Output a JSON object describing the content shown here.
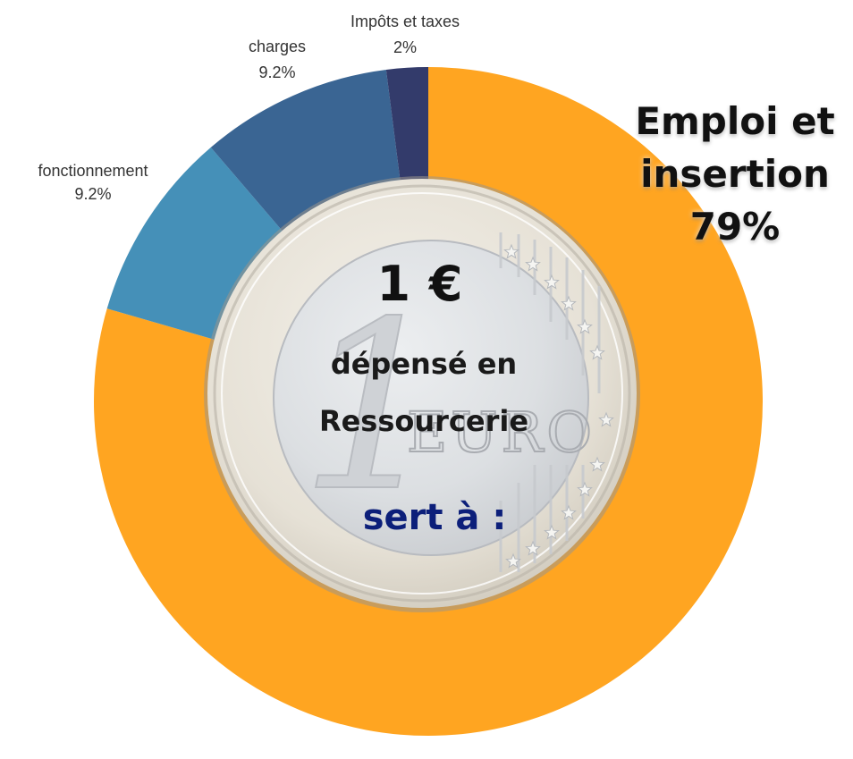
{
  "chart_data": {
    "type": "pie",
    "subtype": "donut",
    "title": "1 € dépensé en Ressourcerie sert à :",
    "categories": [
      "Emploi et insertion",
      "fonctionnement",
      "charges",
      "Impôts et taxes"
    ],
    "values": [
      79,
      9.2,
      9.2,
      2
    ],
    "unit": "%",
    "labels": [
      "79%",
      "9.2%",
      "9.2%",
      "2%"
    ],
    "colors": [
      "#FFA521",
      "#4590B8",
      "#3A6593",
      "#333B6B"
    ],
    "start_angle_deg": 0,
    "direction": "clockwise",
    "legend": "none"
  },
  "labels": {
    "impots": {
      "name": "Impôts et taxes",
      "value": "2%"
    },
    "charges": {
      "name": "charges",
      "value": "9.2%"
    },
    "fonctionnement": {
      "name": "fonctionnement",
      "value": "9.2%"
    }
  },
  "highlight": {
    "line1": "Emploi et",
    "line2": "insertion",
    "line3": "79%"
  },
  "center": {
    "amount": "1 €",
    "line1": "dépensé en",
    "line2": "Ressourcerie",
    "line3": "sert à :"
  },
  "coin": {
    "engraving": "EURO",
    "denomination": "1"
  }
}
